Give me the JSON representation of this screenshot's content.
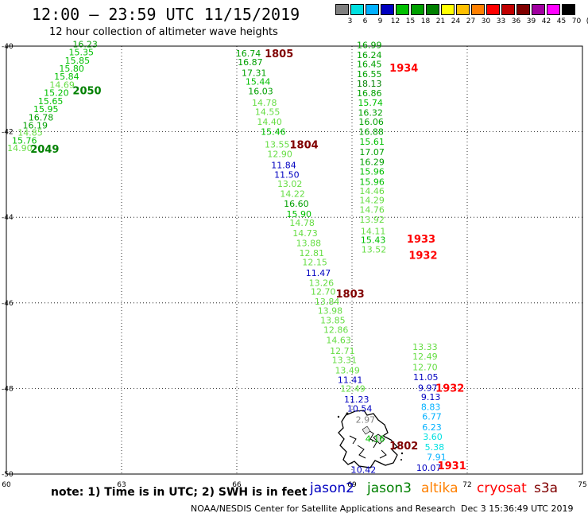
{
  "header": {
    "title": "12:00 – 23:59 UTC 11/15/2019",
    "subtitle": "12 hour collection of altimeter wave heights"
  },
  "color_scale": {
    "labels": [
      "3",
      "6",
      "9",
      "12",
      "15",
      "18",
      "21",
      "24",
      "27",
      "30",
      "33",
      "36",
      "39",
      "42",
      "45",
      "70",
      "(ft)"
    ],
    "colors": [
      "#808080",
      "#00e0e0",
      "#00b0ff",
      "#0000c0",
      "#00c000",
      "#00a000",
      "#008000",
      "#ffff00",
      "#ffc000",
      "#ff8000",
      "#ff0000",
      "#c00000",
      "#800000",
      "#a000a0",
      "#ff00ff",
      "#000000"
    ]
  },
  "axes": {
    "lat_labels": [
      "-40",
      "-42",
      "-44",
      "-46",
      "-48",
      "-50"
    ],
    "lon_labels": [
      "60",
      "63",
      "66",
      "69",
      "72",
      "75"
    ],
    "lat_range": [
      -50,
      -40
    ],
    "lon_range": [
      60,
      75
    ]
  },
  "passes": [
    {
      "id": "2050/2049",
      "labels": [
        {
          "text": "2050",
          "lon": 62.1,
          "lat": -41.03,
          "color": "#008000"
        },
        {
          "text": "2049",
          "lon": 61.0,
          "lat": -42.4,
          "color": "#008000"
        }
      ],
      "values": [
        {
          "v": "16.23",
          "lon": 62.05,
          "lat": -39.95,
          "color": "#00a000"
        },
        {
          "v": "15.35",
          "lon": 61.95,
          "lat": -40.14,
          "color": "#00c000"
        },
        {
          "v": "15.85",
          "lon": 61.85,
          "lat": -40.33,
          "color": "#00c000"
        },
        {
          "v": "15.80",
          "lon": 61.7,
          "lat": -40.52,
          "color": "#00c000"
        },
        {
          "v": "15.84",
          "lon": 61.57,
          "lat": -40.71,
          "color": "#00c000"
        },
        {
          "v": "14.69",
          "lon": 61.45,
          "lat": -40.9,
          "color": "#66dd44"
        },
        {
          "v": "15.20",
          "lon": 61.3,
          "lat": -41.09,
          "color": "#00c000"
        },
        {
          "v": "15.65",
          "lon": 61.15,
          "lat": -41.28,
          "color": "#00c000"
        },
        {
          "v": "15.95",
          "lon": 61.03,
          "lat": -41.47,
          "color": "#00c000"
        },
        {
          "v": "16.78",
          "lon": 60.9,
          "lat": -41.66,
          "color": "#00a000"
        },
        {
          "v": "16.19",
          "lon": 60.75,
          "lat": -41.85,
          "color": "#00a000"
        },
        {
          "v": "14.85",
          "lon": 60.62,
          "lat": -42.02,
          "color": "#66dd44"
        },
        {
          "v": "15.76",
          "lon": 60.47,
          "lat": -42.2,
          "color": "#00c000"
        },
        {
          "v": "14.90",
          "lon": 60.35,
          "lat": -42.38,
          "color": "#66dd44"
        }
      ]
    },
    {
      "id": "1805/1804/1803/1802",
      "labels": [
        {
          "text": "1805",
          "lon": 67.1,
          "lat": -40.17,
          "color": "#800000"
        },
        {
          "text": "1804",
          "lon": 67.75,
          "lat": -42.3,
          "color": "#800000"
        },
        {
          "text": "1803",
          "lon": 68.95,
          "lat": -45.78,
          "color": "#800000"
        },
        {
          "text": "1802",
          "lon": 70.35,
          "lat": -49.33,
          "color": "#800000"
        }
      ],
      "values": [
        {
          "v": "16.74",
          "lon": 66.3,
          "lat": -40.17,
          "color": "#00a000"
        },
        {
          "v": "16.87",
          "lon": 66.35,
          "lat": -40.37,
          "color": "#00a000"
        },
        {
          "v": "17.31",
          "lon": 66.45,
          "lat": -40.62,
          "color": "#00a000"
        },
        {
          "v": "15.44",
          "lon": 66.55,
          "lat": -40.83,
          "color": "#00c000"
        },
        {
          "v": "16.03",
          "lon": 66.62,
          "lat": -41.05,
          "color": "#00a000"
        },
        {
          "v": "14.78",
          "lon": 66.72,
          "lat": -41.32,
          "color": "#66dd44"
        },
        {
          "v": "14.55",
          "lon": 66.8,
          "lat": -41.53,
          "color": "#66dd44"
        },
        {
          "v": "14.40",
          "lon": 66.85,
          "lat": -41.77,
          "color": "#66dd44"
        },
        {
          "v": "15.46",
          "lon": 66.95,
          "lat": -42.0,
          "color": "#00c000"
        },
        {
          "v": "13.55",
          "lon": 67.05,
          "lat": -42.3,
          "color": "#66dd44"
        },
        {
          "v": "12.90",
          "lon": 67.12,
          "lat": -42.52,
          "color": "#66dd44"
        },
        {
          "v": "11.84",
          "lon": 67.22,
          "lat": -42.78,
          "color": "#0000c0"
        },
        {
          "v": "11.50",
          "lon": 67.3,
          "lat": -43.0,
          "color": "#0000c0"
        },
        {
          "v": "13.02",
          "lon": 67.38,
          "lat": -43.22,
          "color": "#66dd44"
        },
        {
          "v": "14.22",
          "lon": 67.45,
          "lat": -43.45,
          "color": "#66dd44"
        },
        {
          "v": "16.60",
          "lon": 67.55,
          "lat": -43.68,
          "color": "#00a000"
        },
        {
          "v": "15.90",
          "lon": 67.62,
          "lat": -43.92,
          "color": "#00c000"
        },
        {
          "v": "14.78",
          "lon": 67.7,
          "lat": -44.13,
          "color": "#66dd44"
        },
        {
          "v": "14.73",
          "lon": 67.78,
          "lat": -44.37,
          "color": "#66dd44"
        },
        {
          "v": "13.88",
          "lon": 67.87,
          "lat": -44.6,
          "color": "#66dd44"
        },
        {
          "v": "12.81",
          "lon": 67.95,
          "lat": -44.83,
          "color": "#66dd44"
        },
        {
          "v": "12.15",
          "lon": 68.03,
          "lat": -45.05,
          "color": "#66dd44"
        },
        {
          "v": "11.47",
          "lon": 68.12,
          "lat": -45.3,
          "color": "#0000c0"
        },
        {
          "v": "13.26",
          "lon": 68.2,
          "lat": -45.53,
          "color": "#66dd44"
        },
        {
          "v": "12.70",
          "lon": 68.25,
          "lat": -45.73,
          "color": "#66dd44"
        },
        {
          "v": "13.84",
          "lon": 68.35,
          "lat": -45.97,
          "color": "#66dd44"
        },
        {
          "v": "13.98",
          "lon": 68.43,
          "lat": -46.18,
          "color": "#66dd44"
        },
        {
          "v": "13.85",
          "lon": 68.5,
          "lat": -46.4,
          "color": "#66dd44"
        },
        {
          "v": "12.86",
          "lon": 68.58,
          "lat": -46.63,
          "color": "#66dd44"
        },
        {
          "v": "14.63",
          "lon": 68.65,
          "lat": -46.87,
          "color": "#66dd44"
        },
        {
          "v": "12.71",
          "lon": 68.75,
          "lat": -47.12,
          "color": "#66dd44"
        },
        {
          "v": "13.31",
          "lon": 68.8,
          "lat": -47.33,
          "color": "#66dd44"
        },
        {
          "v": "13.49",
          "lon": 68.88,
          "lat": -47.57,
          "color": "#66dd44"
        },
        {
          "v": "11.41",
          "lon": 68.95,
          "lat": -47.8,
          "color": "#0000c0"
        },
        {
          "v": "12.49",
          "lon": 69.02,
          "lat": -48.0,
          "color": "#66dd44"
        },
        {
          "v": "11.23",
          "lon": 69.12,
          "lat": -48.25,
          "color": "#0000c0"
        },
        {
          "v": "10.54",
          "lon": 69.2,
          "lat": -48.47,
          "color": "#0000c0"
        },
        {
          "v": "2.97",
          "lon": 69.35,
          "lat": -48.73,
          "color": "#808080"
        },
        {
          "v": "4.16",
          "lon": 69.6,
          "lat": -49.17,
          "color": "#00c000"
        },
        {
          "v": "10.42",
          "lon": 69.3,
          "lat": -49.9,
          "color": "#0000c0"
        }
      ]
    },
    {
      "id": "1934/1933/1932",
      "labels": [
        {
          "text": "1934",
          "lon": 70.35,
          "lat": -40.5,
          "color": "#ff0000"
        },
        {
          "text": "1933",
          "lon": 70.8,
          "lat": -44.5,
          "color": "#ff0000"
        },
        {
          "text": "1932",
          "lon": 70.85,
          "lat": -44.88,
          "color": "#ff0000"
        }
      ],
      "values": [
        {
          "v": "16.99",
          "lon": 69.45,
          "lat": -39.97,
          "color": "#00a000"
        },
        {
          "v": "16.24",
          "lon": 69.45,
          "lat": -40.2,
          "color": "#00a000"
        },
        {
          "v": "16.45",
          "lon": 69.45,
          "lat": -40.42,
          "color": "#00a000"
        },
        {
          "v": "16.55",
          "lon": 69.45,
          "lat": -40.65,
          "color": "#00a000"
        },
        {
          "v": "18.13",
          "lon": 69.45,
          "lat": -40.87,
          "color": "#008000"
        },
        {
          "v": "16.86",
          "lon": 69.45,
          "lat": -41.1,
          "color": "#00a000"
        },
        {
          "v": "15.74",
          "lon": 69.48,
          "lat": -41.32,
          "color": "#00c000"
        },
        {
          "v": "16.32",
          "lon": 69.48,
          "lat": -41.55,
          "color": "#00a000"
        },
        {
          "v": "16.06",
          "lon": 69.5,
          "lat": -41.77,
          "color": "#00a000"
        },
        {
          "v": "16.88",
          "lon": 69.5,
          "lat": -42.0,
          "color": "#00a000"
        },
        {
          "v": "15.61",
          "lon": 69.52,
          "lat": -42.23,
          "color": "#00c000"
        },
        {
          "v": "17.07",
          "lon": 69.52,
          "lat": -42.47,
          "color": "#00a000"
        },
        {
          "v": "16.29",
          "lon": 69.52,
          "lat": -42.7,
          "color": "#00a000"
        },
        {
          "v": "15.96",
          "lon": 69.52,
          "lat": -42.93,
          "color": "#00c000"
        },
        {
          "v": "15.96",
          "lon": 69.52,
          "lat": -43.17,
          "color": "#00c000"
        },
        {
          "v": "14.46",
          "lon": 69.52,
          "lat": -43.38,
          "color": "#66dd44"
        },
        {
          "v": "14.29",
          "lon": 69.52,
          "lat": -43.6,
          "color": "#66dd44"
        },
        {
          "v": "14.76",
          "lon": 69.52,
          "lat": -43.82,
          "color": "#66dd44"
        },
        {
          "v": "13.92",
          "lon": 69.52,
          "lat": -44.05,
          "color": "#66dd44"
        },
        {
          "v": "14.11",
          "lon": 69.55,
          "lat": -44.32,
          "color": "#66dd44"
        },
        {
          "v": "15.43",
          "lon": 69.55,
          "lat": -44.53,
          "color": "#00c000"
        },
        {
          "v": "13.52",
          "lon": 69.57,
          "lat": -44.75,
          "color": "#66dd44"
        }
      ]
    },
    {
      "id": "1932/1931",
      "labels": [
        {
          "text": "1932",
          "lon": 71.55,
          "lat": -47.98,
          "color": "#ff0000"
        },
        {
          "text": "1931",
          "lon": 71.6,
          "lat": -49.8,
          "color": "#ff0000"
        }
      ],
      "values": [
        {
          "v": "13.33",
          "lon": 70.9,
          "lat": -47.03,
          "color": "#66dd44"
        },
        {
          "v": "12.49",
          "lon": 70.9,
          "lat": -47.25,
          "color": "#66dd44"
        },
        {
          "v": "12.70",
          "lon": 70.9,
          "lat": -47.5,
          "color": "#66dd44"
        },
        {
          "v": "11.05",
          "lon": 70.92,
          "lat": -47.73,
          "color": "#0000c0"
        },
        {
          "v": "9.97",
          "lon": 70.97,
          "lat": -47.98,
          "color": "#0000c0"
        },
        {
          "v": "9.13",
          "lon": 71.05,
          "lat": -48.2,
          "color": "#0000c0"
        },
        {
          "v": "8.83",
          "lon": 71.05,
          "lat": -48.43,
          "color": "#00b0ff"
        },
        {
          "v": "6.77",
          "lon": 71.08,
          "lat": -48.65,
          "color": "#00b0ff"
        },
        {
          "v": "6.23",
          "lon": 71.08,
          "lat": -48.9,
          "color": "#00b0ff"
        },
        {
          "v": "3.60",
          "lon": 71.1,
          "lat": -49.13,
          "color": "#00e0e0"
        },
        {
          "v": "5.38",
          "lon": 71.15,
          "lat": -49.37,
          "color": "#00e0e0"
        },
        {
          "v": "7.91",
          "lon": 71.2,
          "lat": -49.6,
          "color": "#00b0ff"
        },
        {
          "v": "10.07",
          "lon": 71.0,
          "lat": -49.85,
          "color": "#0000c0"
        }
      ]
    }
  ],
  "note": "note:  1) Time is in UTC; 2) SWH is in feet",
  "satellites": [
    {
      "name": "jason2",
      "color": "#0000c0"
    },
    {
      "name": "jason3",
      "color": "#008000"
    },
    {
      "name": "altika",
      "color": "#ff8000"
    },
    {
      "name": "cryosat",
      "color": "#ff0000"
    },
    {
      "name": "s3a",
      "color": "#800000"
    }
  ],
  "footer": {
    "source": "NOAA/NESDIS Center for Satellite Applications and Research",
    "timestamp": "Dec  3 15:36:49 UTC 2019"
  }
}
